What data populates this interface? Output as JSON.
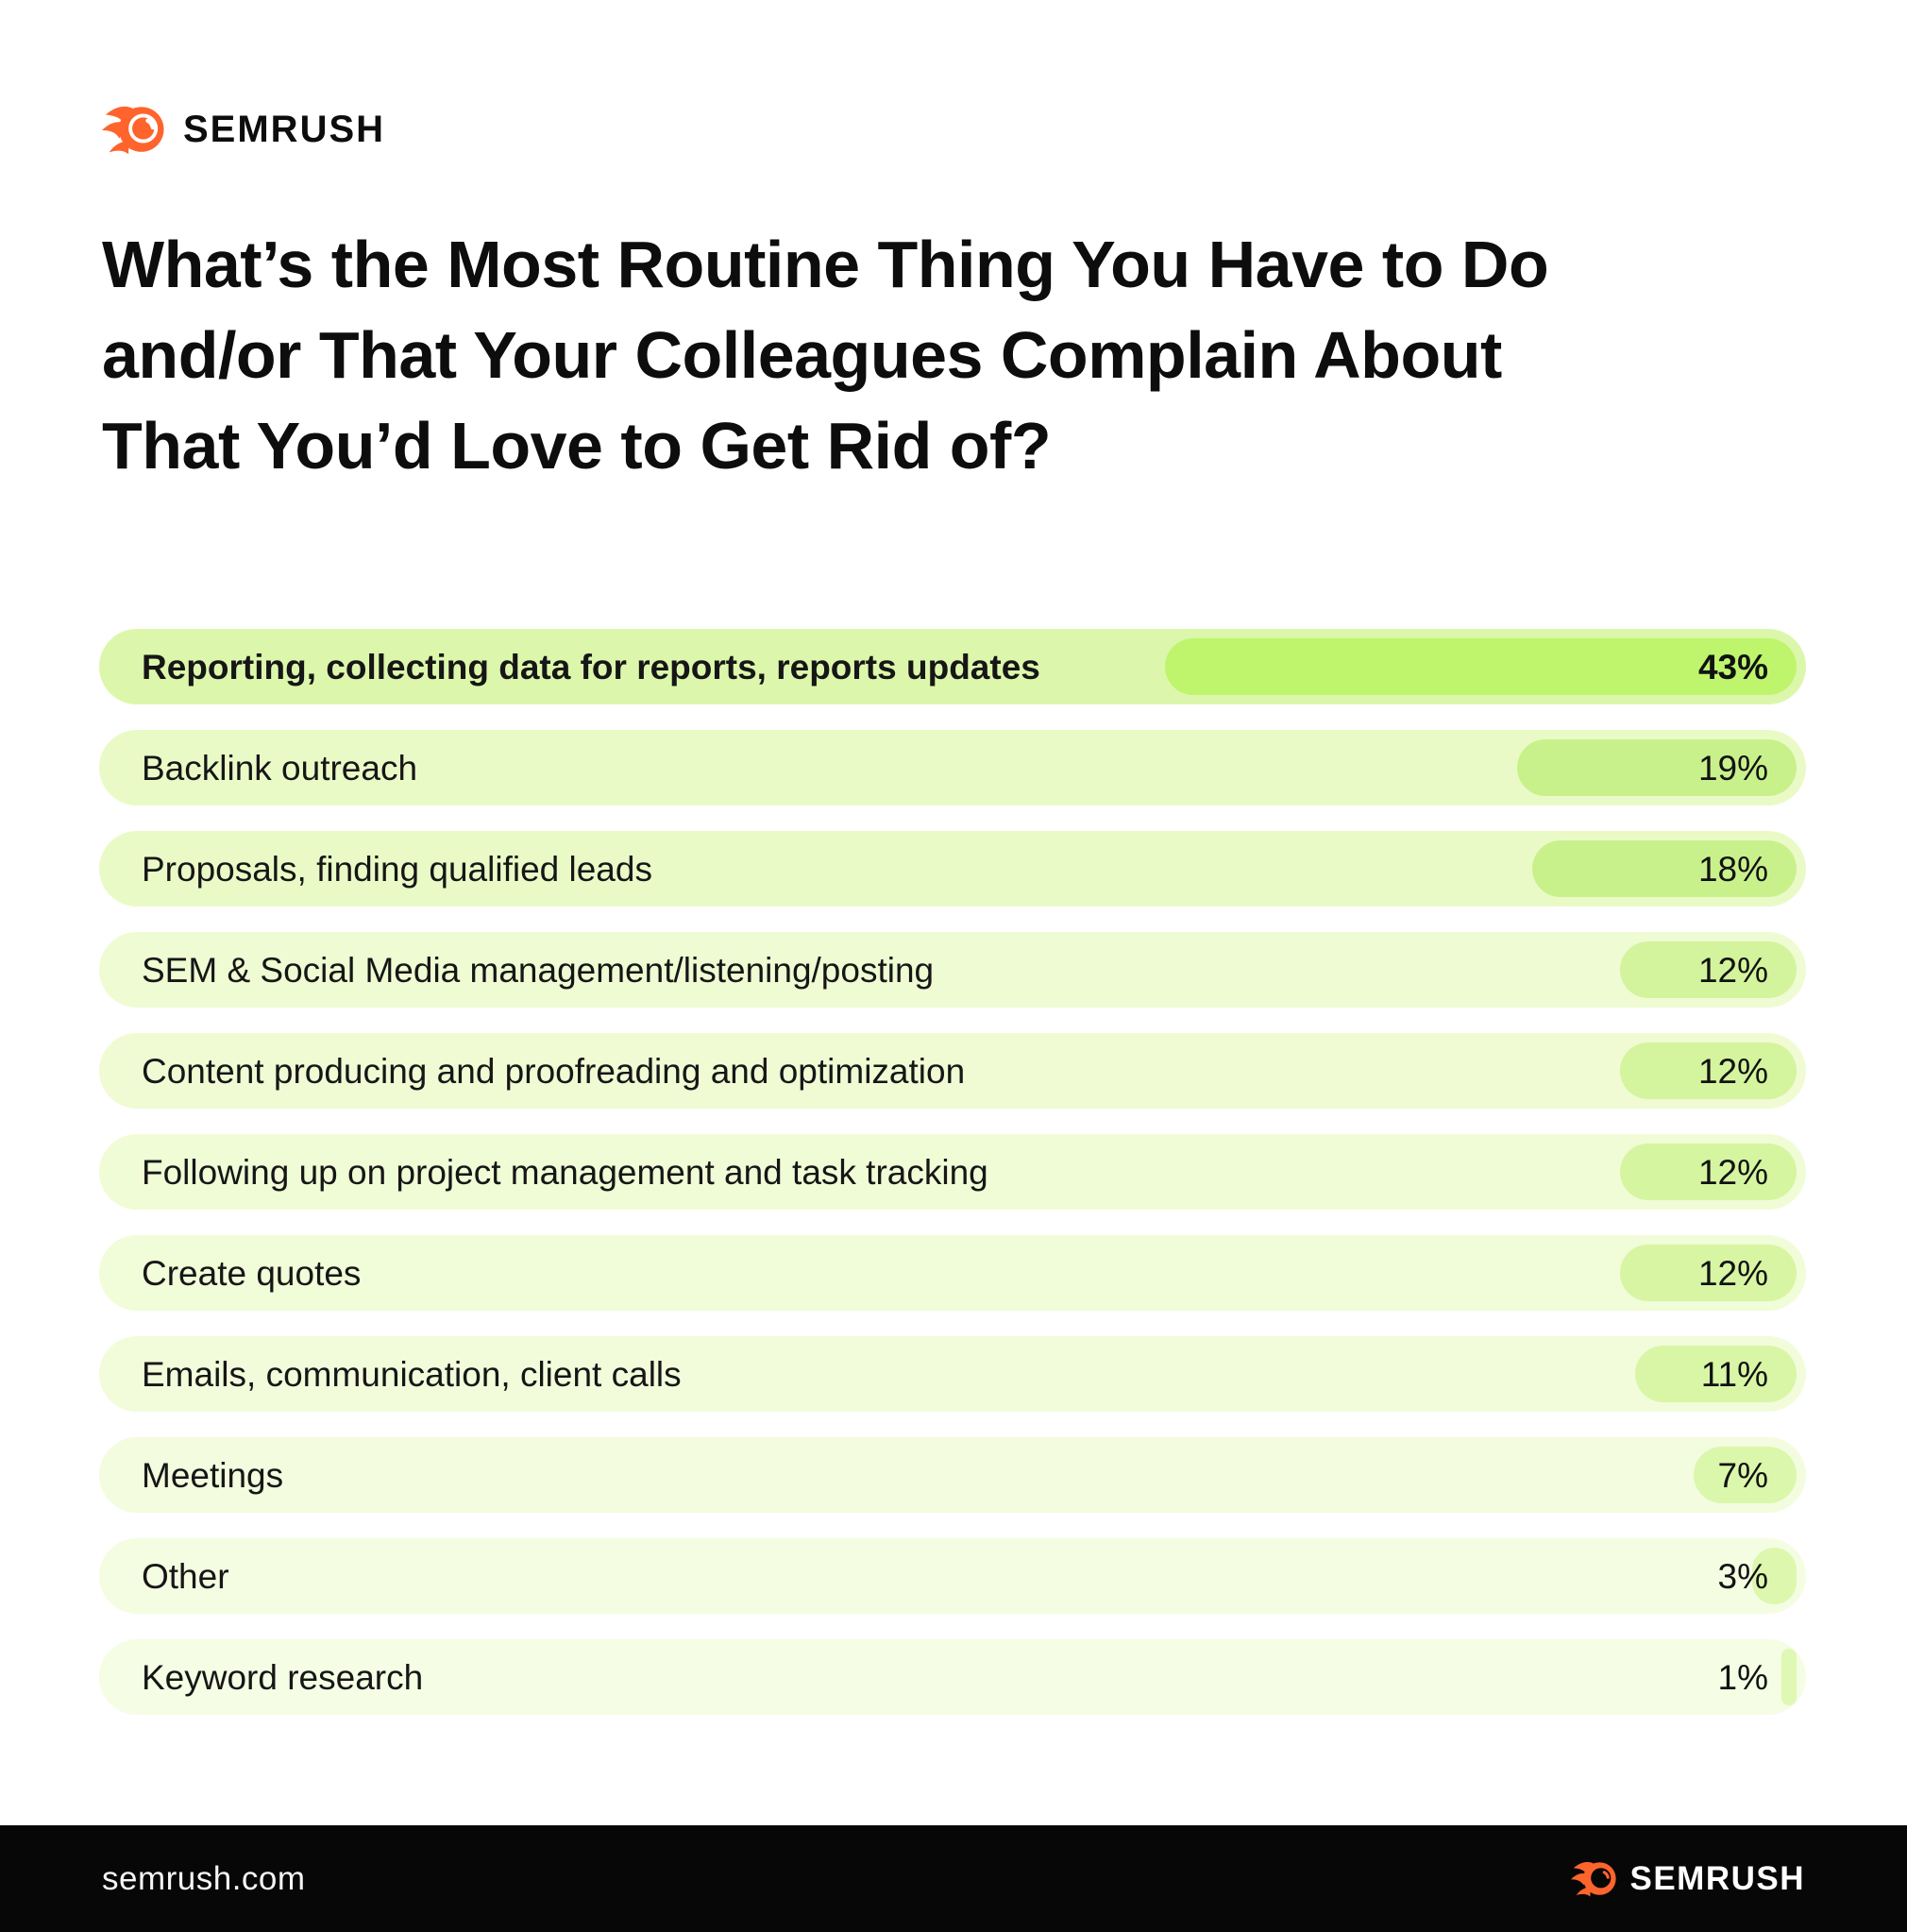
{
  "brand": {
    "name": "SEMRUSH",
    "orange": "#FF642D"
  },
  "title": {
    "lines": [
      "What’s the Most Routine Thing You Have to Do",
      "and/or That Your Colleagues Complain About",
      "That You’d Love to Get Rid of?"
    ]
  },
  "chart_data": {
    "type": "bar",
    "orientation": "horizontal",
    "title": "What’s the Most Routine Thing You Have to Do and/or That Your Colleagues Complain About That You’d Love to Get Rid of?",
    "categories": [
      "Reporting, collecting data for reports, reports updates",
      "Backlink outreach",
      "Proposals, finding qualified leads",
      "SEM & Social Media management/listening/posting",
      "Content producing and proofreading and optimization",
      "Following up on project management and task tracking",
      "Create quotes",
      "Emails, communication, client calls",
      "Meetings",
      "Other",
      "Keyword research"
    ],
    "values": [
      43,
      19,
      18,
      12,
      12,
      12,
      12,
      11,
      7,
      3,
      1
    ],
    "value_labels": [
      "43%",
      "19%",
      "18%",
      "12%",
      "12%",
      "12%",
      "12%",
      "11%",
      "7%",
      "3%",
      "1%"
    ],
    "unit": "%",
    "xlim": [
      0,
      43
    ],
    "highlight_index": 0,
    "legend": "none",
    "grid": false,
    "row_styles": [
      {
        "bg": "#DCF7AB",
        "bar": "#BEF56C"
      },
      {
        "bg": "#EAFAC7",
        "bar": "#C9F18B"
      },
      {
        "bg": "#EAFAC7",
        "bar": "#C9F18B"
      },
      {
        "bg": "#EFFBD2",
        "bar": "#D3F49C"
      },
      {
        "bg": "#F0FBD4",
        "bar": "#D4F49E"
      },
      {
        "bg": "#F0FCD6",
        "bar": "#D5F5A0"
      },
      {
        "bg": "#F1FCD8",
        "bar": "#D7F5A3"
      },
      {
        "bg": "#F2FCDB",
        "bar": "#D8F6A6"
      },
      {
        "bg": "#F3FCDE",
        "bar": "#DBF7AB"
      },
      {
        "bg": "#F4FDE1",
        "bar": "#DDF7AF"
      },
      {
        "bg": "#F5FDE4",
        "bar": "#DFF8B3"
      }
    ]
  },
  "footer": {
    "url": "semrush.com",
    "logo_text": "SEMRUSH"
  }
}
